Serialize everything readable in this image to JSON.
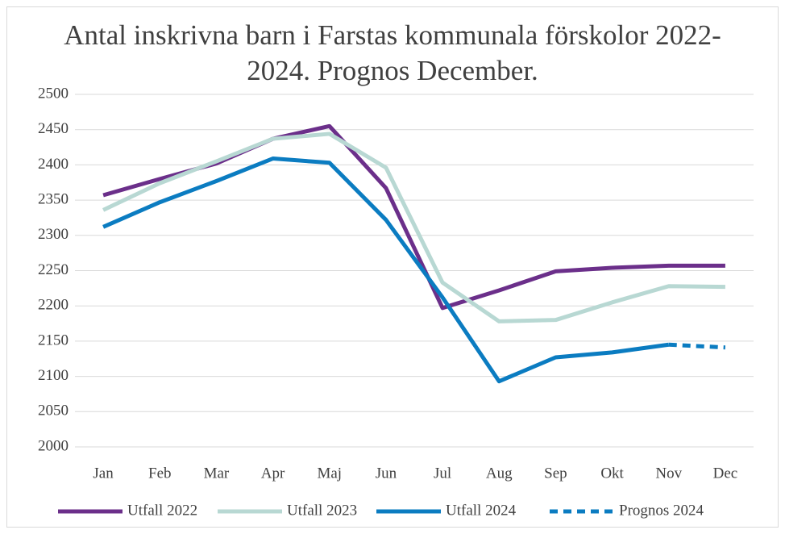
{
  "chart_data": {
    "type": "line",
    "title": "Antal inskrivna barn i Farstas kommunala förskolor 2022-2024. Prognos December.",
    "categories": [
      "Jan",
      "Feb",
      "Mar",
      "Apr",
      "Maj",
      "Jun",
      "Jul",
      "Aug",
      "Sep",
      "Okt",
      "Nov",
      "Dec"
    ],
    "series": [
      {
        "name": "Utfall 2022",
        "color": "#6b2f8a",
        "values": [
          2357,
          2380,
          2402,
          2437,
          2455,
          2367,
          2197,
          2222,
          2249,
          2254,
          2257,
          2257
        ]
      },
      {
        "name": "Utfall 2023",
        "color": "#b8d8d3",
        "values": [
          2336,
          2374,
          2405,
          2437,
          2444,
          2396,
          2233,
          2178,
          2180,
          2205,
          2228,
          2227
        ]
      },
      {
        "name": "Utfall 2024",
        "color": "#0b7cc1",
        "values": [
          2312,
          2347,
          2377,
          2409,
          2403,
          2322,
          2212,
          2093,
          2127,
          2134,
          2145,
          null
        ]
      },
      {
        "name": "Prognos 2024",
        "color": "#0b7cc1",
        "dashed": true,
        "values": [
          null,
          null,
          null,
          null,
          null,
          null,
          null,
          null,
          null,
          null,
          2145,
          2141
        ]
      }
    ],
    "ylim": [
      2000,
      2500
    ],
    "yticks": [
      2000,
      2050,
      2100,
      2150,
      2200,
      2250,
      2300,
      2350,
      2400,
      2450,
      2500
    ],
    "grid": true,
    "legend": "bottom"
  }
}
